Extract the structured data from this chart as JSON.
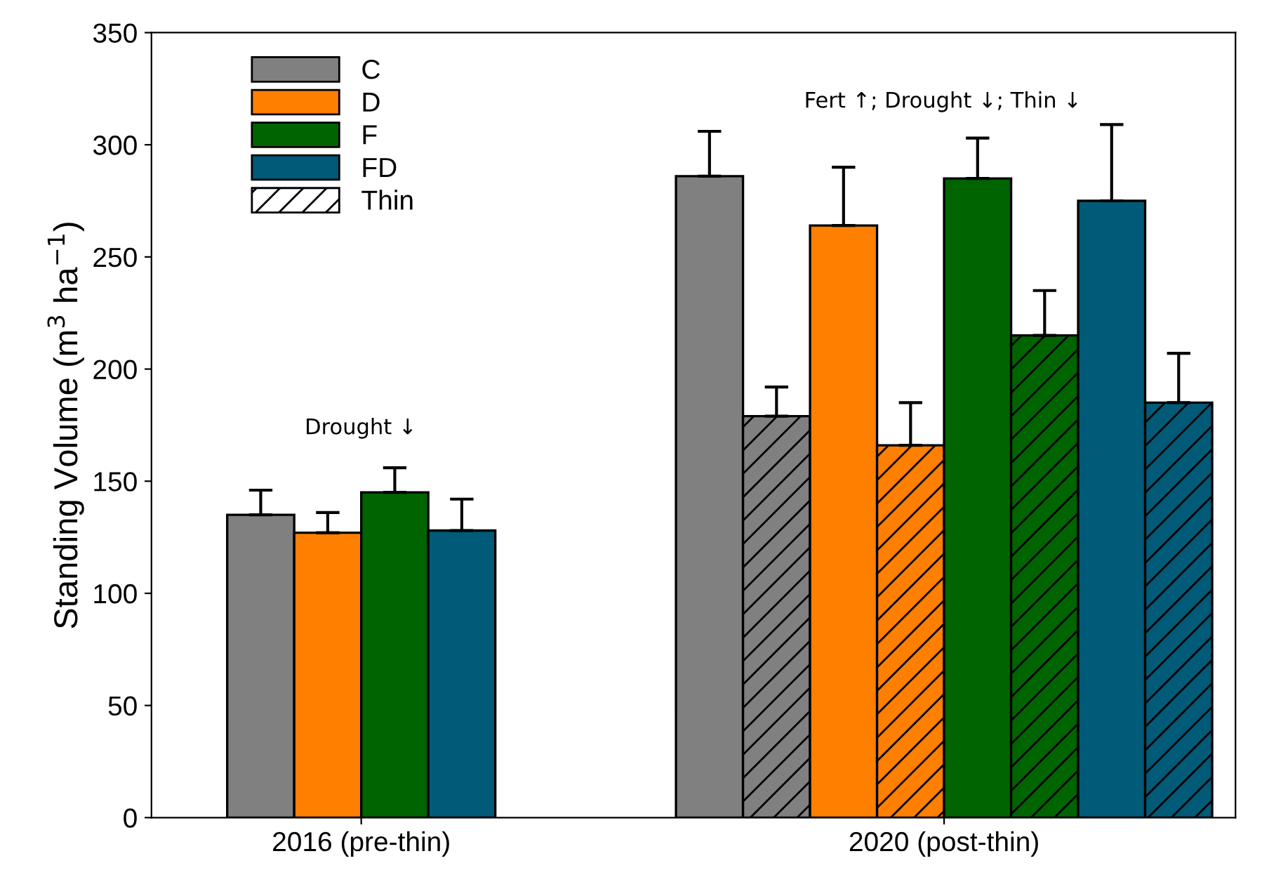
{
  "chart_data": {
    "type": "bar",
    "ylabel": "Standing Volume (m$^{3}$ ha$^{−1}$)",
    "categories": [
      "2016 (pre-thin)",
      "2020 (post-thin)"
    ],
    "series": [
      {
        "name": "C",
        "color": "#808080",
        "values": [
          135,
          286
        ],
        "errors": [
          11,
          20
        ]
      },
      {
        "color": "#808080",
        "values": [
          null,
          179
        ],
        "errors": [
          null,
          13
        ]
      },
      {
        "name": "D",
        "color": "#ff7f00",
        "values": [
          127,
          264
        ],
        "errors": [
          9,
          26
        ]
      },
      {
        "color": "#ff7f00",
        "values": [
          null,
          166
        ],
        "errors": [
          null,
          19
        ]
      },
      {
        "name": "F",
        "color": "#006400",
        "values": [
          145,
          285
        ],
        "errors": [
          11,
          18
        ]
      },
      {
        "color": "#006400",
        "values": [
          null,
          215
        ],
        "errors": [
          null,
          20
        ]
      },
      {
        "name": "FD",
        "color": "#005a78",
        "values": [
          128,
          275
        ],
        "errors": [
          14,
          34
        ]
      },
      {
        "color": "#005a78",
        "values": [
          null,
          185
        ],
        "errors": [
          null,
          22
        ]
      },
      {
        "name": "Thin",
        "color": "#ffffff",
        "values": [
          null,
          null
        ]
      }
    ],
    "annotations": [
      "Drought ↓",
      "Fert ↑; Drought ↓; Thin ↓"
    ],
    "ylim": [
      0,
      350
    ],
    "yticks": [
      0,
      50,
      100,
      150,
      200,
      250,
      300,
      350
    ],
    "grid": false,
    "legend": "top left"
  }
}
